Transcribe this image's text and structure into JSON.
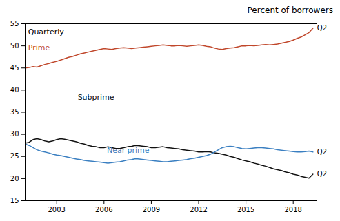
{
  "chart_data": {
    "type": "line",
    "title": "Percent of borrowers",
    "x": [
      2001,
      2001.25,
      2001.5,
      2001.75,
      2002,
      2002.25,
      2002.5,
      2002.75,
      2003,
      2003.25,
      2003.5,
      2003.75,
      2004,
      2004.25,
      2004.5,
      2004.75,
      2005,
      2005.25,
      2005.5,
      2005.75,
      2006,
      2006.25,
      2006.5,
      2006.75,
      2007,
      2007.25,
      2007.5,
      2007.75,
      2008,
      2008.25,
      2008.5,
      2008.75,
      2009,
      2009.25,
      2009.5,
      2009.75,
      2010,
      2010.25,
      2010.5,
      2010.75,
      2011,
      2011.25,
      2011.5,
      2011.75,
      2012,
      2012.25,
      2012.5,
      2012.75,
      2013,
      2013.25,
      2013.5,
      2013.75,
      2014,
      2014.25,
      2014.5,
      2014.75,
      2015,
      2015.25,
      2015.5,
      2015.75,
      2016,
      2016.25,
      2016.5,
      2016.75,
      2017,
      2017.25,
      2017.5,
      2017.75,
      2018,
      2018.25,
      2018.5,
      2018.75,
      2019,
      2019.25
    ],
    "series": [
      {
        "name": "Prime",
        "color": "#c0472b",
        "values": [
          45.0,
          45.1,
          45.3,
          45.2,
          45.5,
          45.8,
          46.0,
          46.3,
          46.5,
          46.8,
          47.1,
          47.4,
          47.6,
          47.9,
          48.2,
          48.4,
          48.6,
          48.8,
          49.0,
          49.2,
          49.4,
          49.3,
          49.2,
          49.4,
          49.5,
          49.6,
          49.5,
          49.4,
          49.5,
          49.6,
          49.7,
          49.8,
          49.9,
          50.0,
          50.1,
          50.2,
          50.1,
          50.0,
          50.0,
          50.1,
          50.0,
          49.9,
          50.0,
          50.1,
          50.2,
          50.1,
          49.9,
          49.8,
          49.5,
          49.3,
          49.2,
          49.4,
          49.5,
          49.6,
          49.8,
          50.0,
          50.0,
          50.1,
          50.0,
          50.1,
          50.2,
          50.3,
          50.2,
          50.3,
          50.4,
          50.6,
          50.8,
          51.0,
          51.3,
          51.7,
          52.0,
          52.5,
          53.0,
          54.0
        ]
      },
      {
        "name": "Subprime",
        "color": "#111111",
        "values": [
          28.0,
          28.2,
          28.8,
          29.0,
          28.8,
          28.5,
          28.3,
          28.5,
          28.8,
          29.0,
          28.9,
          28.7,
          28.5,
          28.3,
          28.0,
          27.8,
          27.5,
          27.3,
          27.2,
          27.0,
          27.0,
          27.2,
          27.0,
          26.8,
          26.8,
          27.0,
          27.2,
          27.3,
          27.5,
          27.4,
          27.3,
          27.2,
          27.0,
          27.0,
          27.1,
          27.2,
          27.0,
          26.9,
          26.8,
          26.7,
          26.5,
          26.4,
          26.3,
          26.2,
          26.0,
          26.0,
          26.1,
          26.0,
          25.8,
          25.7,
          25.5,
          25.3,
          25.0,
          24.8,
          24.5,
          24.2,
          24.0,
          23.8,
          23.5,
          23.3,
          23.0,
          22.8,
          22.5,
          22.2,
          22.0,
          21.8,
          21.5,
          21.3,
          21.0,
          20.8,
          20.5,
          20.3,
          20.1,
          21.0
        ]
      },
      {
        "name": "Near-prime",
        "color": "#3a7fc1",
        "values": [
          27.8,
          27.5,
          27.0,
          26.5,
          26.2,
          26.0,
          25.8,
          25.5,
          25.3,
          25.2,
          25.0,
          24.8,
          24.6,
          24.4,
          24.3,
          24.1,
          24.0,
          23.9,
          23.8,
          23.7,
          23.6,
          23.5,
          23.6,
          23.7,
          23.8,
          24.0,
          24.2,
          24.3,
          24.5,
          24.4,
          24.3,
          24.2,
          24.1,
          24.0,
          23.9,
          23.8,
          23.8,
          23.9,
          24.0,
          24.1,
          24.2,
          24.3,
          24.5,
          24.6,
          24.8,
          25.0,
          25.2,
          25.5,
          26.0,
          26.5,
          27.0,
          27.2,
          27.3,
          27.2,
          27.0,
          26.8,
          26.7,
          26.8,
          26.9,
          27.0,
          27.0,
          26.9,
          26.8,
          26.7,
          26.5,
          26.4,
          26.3,
          26.2,
          26.1,
          26.0,
          26.0,
          26.1,
          26.2,
          26.0
        ]
      }
    ],
    "annotations": [
      "Quarterly",
      {
        "text": "Q2",
        "x": 2019.25,
        "y": 54.0
      },
      {
        "text": "Q2",
        "x": 2019.25,
        "y": 26.0
      },
      {
        "text": "Q2",
        "x": 2019.25,
        "y": 21.0
      }
    ],
    "xlim": [
      2001.0,
      2019.5
    ],
    "xticks": [
      2003,
      2006,
      2009,
      2012,
      2015,
      2018
    ],
    "ylim": [
      15,
      55
    ],
    "yticks": [
      15,
      20,
      25,
      30,
      35,
      40,
      45,
      50,
      55
    ],
    "grid": false
  }
}
